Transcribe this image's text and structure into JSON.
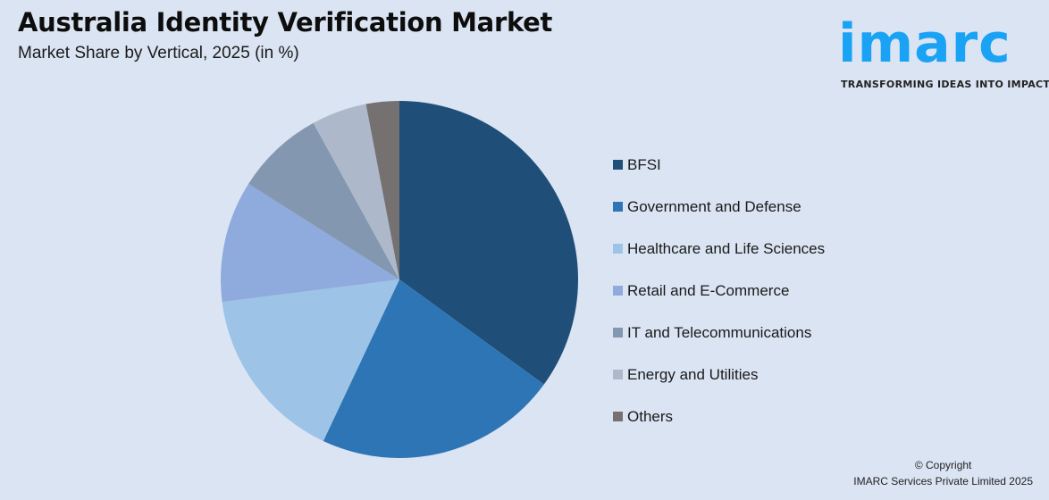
{
  "header": {
    "title": "Australia Identity Verification Market",
    "subtitle": "Market Share by Vertical, 2025 (in %)"
  },
  "logo": {
    "word": "imarc",
    "tagline": "TRANSFORMING IDEAS INTO IMPACT",
    "color": "#1aa3f5"
  },
  "footer": {
    "copyright_line1": "© Copyright",
    "copyright_line2": "IMARC Services Private Limited 2025"
  },
  "chart_data": {
    "type": "pie",
    "title": "Australia Identity Verification Market",
    "subtitle": "Market Share by Vertical, 2025 (in %)",
    "categories": [
      "BFSI",
      "Government and Defense",
      "Healthcare and Life Sciences",
      "Retail and E-Commerce",
      "IT and Telecommunications",
      "Energy and Utilities",
      "Others"
    ],
    "values": [
      35,
      22,
      16,
      11,
      8,
      5,
      3
    ],
    "colors": [
      "#1f4e79",
      "#2e75b6",
      "#9dc3e6",
      "#8faadc",
      "#8497b0",
      "#adb9ca",
      "#767171"
    ],
    "start_angle": "12 o'clock, clockwise",
    "legend_position": "right",
    "data_labels": false
  }
}
